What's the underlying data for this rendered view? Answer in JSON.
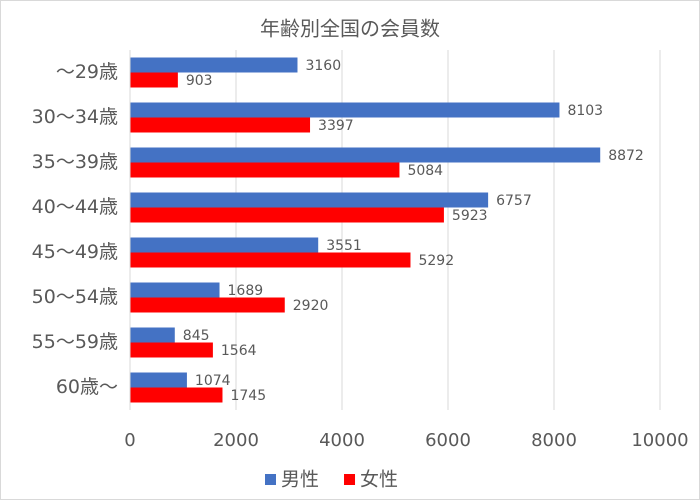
{
  "chart_data": {
    "type": "bar",
    "orientation": "horizontal",
    "title": "年齢別全国の会員数",
    "categories": [
      "～29歳",
      "30～34歳",
      "35～39歳",
      "40～44歳",
      "45～49歳",
      "50～54歳",
      "55～59歳",
      "60歳～"
    ],
    "series": [
      {
        "name": "男性",
        "color": "#4472c4",
        "values": [
          3160,
          8103,
          8872,
          6757,
          3551,
          1689,
          845,
          1074
        ]
      },
      {
        "name": "女性",
        "color": "#ff0000",
        "values": [
          903,
          3397,
          5084,
          5923,
          5292,
          2920,
          1564,
          1745
        ]
      }
    ],
    "xlim": [
      0,
      10000
    ],
    "xticks": [
      0,
      2000,
      4000,
      6000,
      8000,
      10000
    ],
    "grid": true,
    "legend": "bottom"
  }
}
